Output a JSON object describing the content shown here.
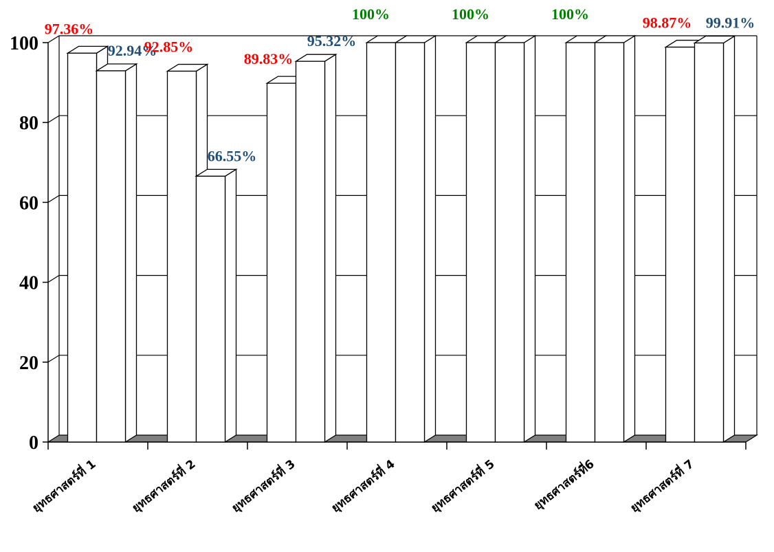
{
  "chart_data": {
    "type": "bar",
    "categories": [
      "ยุทธศาสตร์ที่ 1",
      "ยุทธศาสตร์ที่ 2",
      "ยุทธศาสตร์ที่ 3",
      "ยุทธศาสตร์ที่ 4",
      "ยุทธศาสตร์ที่ 5",
      "ยุทธศาสตร์ที่6",
      "ยุทธศาสตร์ที่ 7"
    ],
    "series": [
      {
        "values": [
          97.36,
          92.85,
          89.83,
          100,
          100,
          100,
          98.87
        ]
      },
      {
        "values": [
          92.94,
          66.55,
          95.32,
          100,
          100,
          100,
          99.91
        ]
      }
    ],
    "data_labels": [
      [
        "97.36%",
        "92.94%"
      ],
      [
        "92.85%",
        "66.55%"
      ],
      [
        "89.83%",
        "95.32%"
      ],
      [
        "100%",
        ""
      ],
      [
        "100%",
        ""
      ],
      [
        "100%",
        ""
      ],
      [
        "98.87%",
        "99.91%"
      ]
    ],
    "label_colors": [
      [
        "#ff0000",
        "#1f4e79"
      ],
      [
        "#ff0000",
        "#1f4e79"
      ],
      [
        "#ff0000",
        "#1f4e79"
      ],
      [
        "#008000",
        ""
      ],
      [
        "#008000",
        ""
      ],
      [
        "#008000",
        ""
      ],
      [
        "#ff0000",
        "#1f4e79"
      ]
    ],
    "y_ticks": [
      "0",
      "20",
      "40",
      "60",
      "80",
      "100"
    ],
    "ylim": [
      0,
      100
    ],
    "grid": true,
    "bar_fill": "#ffffff",
    "floor_color": "#808080"
  }
}
